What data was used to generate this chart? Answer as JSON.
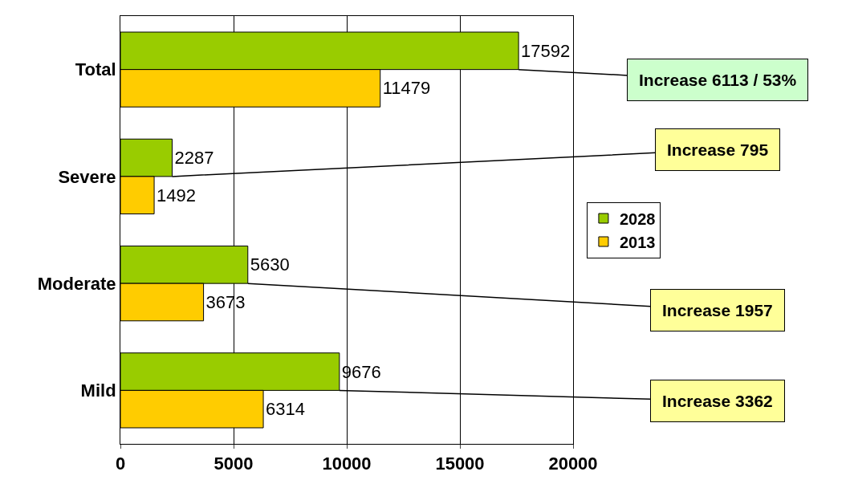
{
  "chart_data": {
    "type": "bar",
    "orientation": "horizontal",
    "categories": [
      "Total",
      "Severe",
      "Moderate",
      "Mild"
    ],
    "series": [
      {
        "name": "2028",
        "color": "#99cc00",
        "values": [
          17592,
          2287,
          5630,
          9676
        ]
      },
      {
        "name": "2013",
        "color": "#ffcc00",
        "values": [
          11479,
          1492,
          3673,
          6314
        ]
      }
    ],
    "xlim": [
      0,
      20000
    ],
    "xticks": [
      0,
      5000,
      10000,
      15000,
      20000
    ],
    "grid": "x",
    "legend": "right",
    "data_labels": true,
    "annotations": [
      {
        "text": "Increase 6113 / 53%",
        "x": 17592,
        "y": "Total"
      },
      {
        "text": "Increase 795",
        "x": 2287,
        "y": "Severe"
      },
      {
        "text": "Increase 1957",
        "x": 5630,
        "y": "Moderate"
      },
      {
        "text": "Increase 3362",
        "x": 9676,
        "y": "Mild"
      }
    ]
  }
}
